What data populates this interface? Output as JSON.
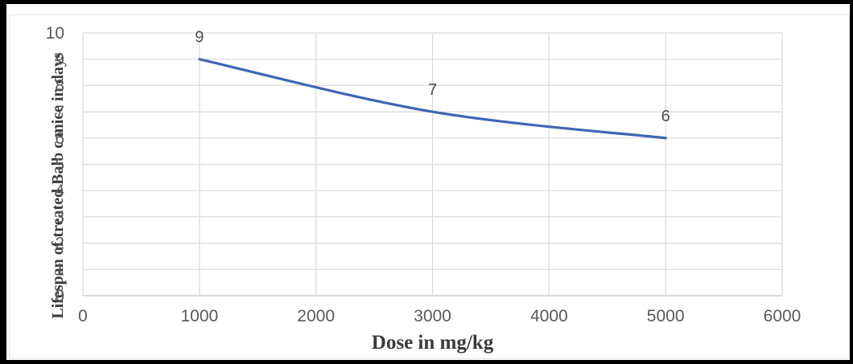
{
  "chart_data": {
    "type": "line",
    "xlabel": "Dose in mg/kg",
    "ylabel": "Lifespan of treated Balb c mice in days",
    "x": [
      1000,
      3000,
      5000
    ],
    "values": [
      9,
      7,
      6
    ],
    "data_labels": [
      "9",
      "7",
      "6"
    ],
    "xlim": [
      0,
      6000
    ],
    "ylim": [
      0,
      10
    ],
    "x_ticks": [
      0,
      1000,
      2000,
      3000,
      4000,
      5000,
      6000
    ],
    "y_ticks": [
      0,
      1,
      2,
      3,
      4,
      5,
      6,
      7,
      8,
      9,
      10
    ],
    "grid": "both",
    "smoothed": true,
    "legend": "none",
    "colors": {
      "line": "#3e66b2",
      "gridline": "#d9d9d9",
      "axis_line": "#bfbfbf",
      "tick_label": "#595959",
      "data_label": "#4f4f4f",
      "axis_title": "#3a3a3a",
      "frame": "#000000",
      "background": "#ffffff"
    }
  }
}
